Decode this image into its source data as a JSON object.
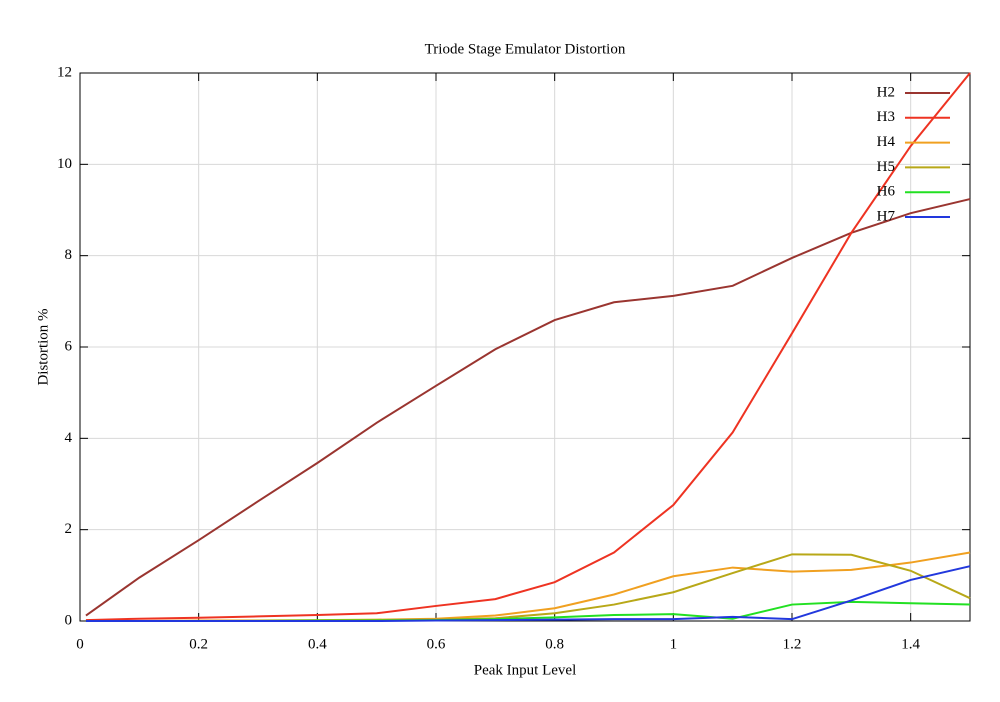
{
  "chart_data": {
    "type": "line",
    "title": "Triode Stage Emulator Distortion",
    "x_label": "Peak Input Level",
    "y_label": "Distortion %",
    "x": [
      0.01,
      0.1,
      0.2,
      0.3,
      0.4,
      0.5,
      0.6,
      0.7,
      0.8,
      0.9,
      1.0,
      1.1,
      1.2,
      1.3,
      1.4,
      1.5
    ],
    "series": [
      {
        "name": "H2",
        "color": "#9a3530",
        "values": [
          0.12,
          0.95,
          1.77,
          2.62,
          3.46,
          4.34,
          5.15,
          5.95,
          6.59,
          6.98,
          7.12,
          7.34,
          7.95,
          8.5,
          8.93,
          9.24
        ]
      },
      {
        "name": "H3",
        "color": "#ee3322",
        "values": [
          0.02,
          0.05,
          0.07,
          0.1,
          0.13,
          0.17,
          0.33,
          0.48,
          0.85,
          1.5,
          2.54,
          4.13,
          6.3,
          8.5,
          10.4,
          12
        ]
      },
      {
        "name": "H4",
        "color": "#f0a020",
        "values": [
          0.0,
          0.0,
          0.01,
          0.01,
          0.02,
          0.03,
          0.05,
          0.12,
          0.28,
          0.58,
          0.98,
          1.17,
          1.08,
          1.12,
          1.28,
          1.5
        ]
      },
      {
        "name": "H5",
        "color": "#b8a818",
        "values": [
          0.0,
          0.0,
          0.0,
          0.01,
          0.01,
          0.02,
          0.03,
          0.06,
          0.17,
          0.36,
          0.63,
          1.05,
          1.46,
          1.45,
          1.1,
          0.5
        ]
      },
      {
        "name": "H6",
        "color": "#22e022",
        "values": [
          0.0,
          0.0,
          0.0,
          0.0,
          0.01,
          0.01,
          0.02,
          0.04,
          0.08,
          0.13,
          0.15,
          0.05,
          0.36,
          0.42,
          0.39,
          0.36
        ]
      },
      {
        "name": "H7",
        "color": "#2238dd",
        "values": [
          0.0,
          0.0,
          0.0,
          0.0,
          0.0,
          0.0,
          0.01,
          0.02,
          0.03,
          0.04,
          0.04,
          0.09,
          0.04,
          0.45,
          0.9,
          1.2
        ]
      }
    ],
    "xlim": [
      0,
      1.5
    ],
    "xticks": [
      0,
      0.2,
      0.4,
      0.6,
      0.8,
      1,
      1.2,
      1.4
    ],
    "ylim": [
      0,
      12
    ],
    "yticks": [
      0,
      2,
      4,
      6,
      8,
      10,
      12
    ],
    "grid": true,
    "legend": "top-right"
  }
}
